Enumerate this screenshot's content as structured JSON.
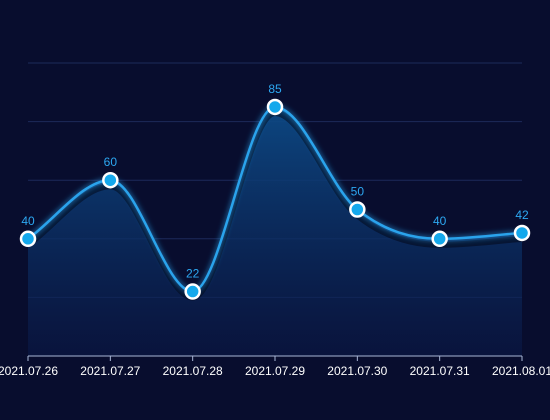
{
  "chart_data": {
    "type": "area",
    "categories": [
      "2021.07.26",
      "2021.07.27",
      "2021.07.28",
      "2021.07.29",
      "2021.07.30",
      "2021.07.31",
      "2021.08.01"
    ],
    "series": [
      {
        "values": [
          40,
          60,
          22,
          85,
          50,
          40,
          42
        ]
      }
    ],
    "ylim": [
      0,
      100
    ],
    "grid": true,
    "smooth": true,
    "colors": {
      "background": "#080d2e",
      "line": "#2aa3ec",
      "marker_fill": "#14a8ec",
      "marker_stroke": "#ffffff",
      "area_top": "#0d4a86",
      "area_bottom": "#0a1846",
      "grid": "#1c2a5a",
      "axis": "#a9b6d6",
      "tick_label": "#ffffff",
      "data_label": "#2da8f2"
    }
  }
}
